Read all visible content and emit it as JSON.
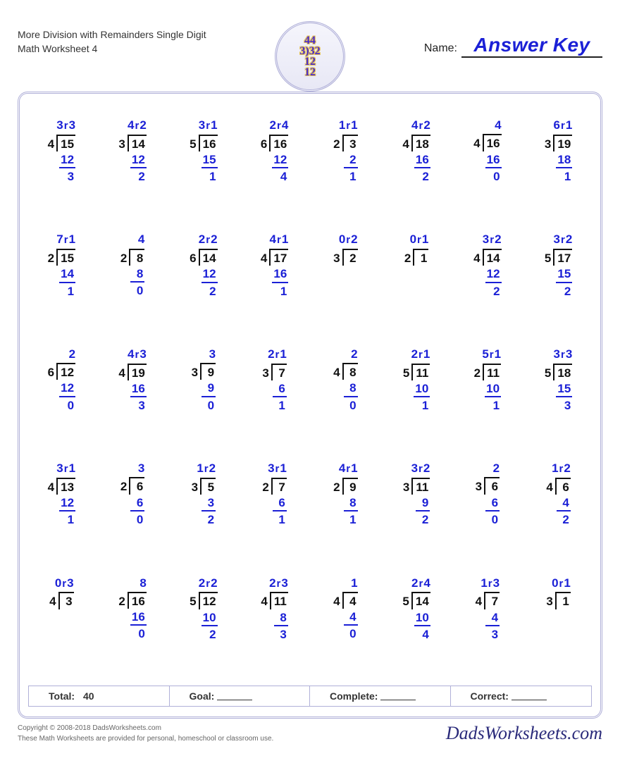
{
  "header": {
    "title": "More Division with Remainders Single Digit Math Worksheet 4",
    "name_label": "Name:",
    "answer_key": "Answer Key",
    "logo_lines": [
      "44",
      "3)32",
      "12",
      "12"
    ]
  },
  "colors": {
    "answer": "#1b20d6",
    "ink": "#111111",
    "frame": "#b0b0d8"
  },
  "score": {
    "total_label": "Total:",
    "total_value": "40",
    "goal_label": "Goal:",
    "complete_label": "Complete:",
    "correct_label": "Correct:"
  },
  "footer": {
    "copyright": "Copyright © 2008-2018 DadsWorksheets.com",
    "note": "These Math Worksheets are provided for personal, homeschool or classroom use.",
    "site": "DadsWorksheets.com"
  },
  "problems": [
    {
      "divisor": 4,
      "dividend": 15,
      "quotient": 3,
      "remainder": 3,
      "sub": 12,
      "rem": 3
    },
    {
      "divisor": 3,
      "dividend": 14,
      "quotient": 4,
      "remainder": 2,
      "sub": 12,
      "rem": 2
    },
    {
      "divisor": 5,
      "dividend": 16,
      "quotient": 3,
      "remainder": 1,
      "sub": 15,
      "rem": 1
    },
    {
      "divisor": 6,
      "dividend": 16,
      "quotient": 2,
      "remainder": 4,
      "sub": 12,
      "rem": 4
    },
    {
      "divisor": 2,
      "dividend": 3,
      "quotient": 1,
      "remainder": 1,
      "sub": 2,
      "rem": 1
    },
    {
      "divisor": 4,
      "dividend": 18,
      "quotient": 4,
      "remainder": 2,
      "sub": 16,
      "rem": 2
    },
    {
      "divisor": 4,
      "dividend": 16,
      "quotient": 4,
      "remainder": null,
      "sub": 16,
      "rem": 0
    },
    {
      "divisor": 3,
      "dividend": 19,
      "quotient": 6,
      "remainder": 1,
      "sub": 18,
      "rem": 1
    },
    {
      "divisor": 2,
      "dividend": 15,
      "quotient": 7,
      "remainder": 1,
      "sub": 14,
      "rem": 1
    },
    {
      "divisor": 2,
      "dividend": 8,
      "quotient": 4,
      "remainder": null,
      "sub": 8,
      "rem": 0
    },
    {
      "divisor": 6,
      "dividend": 14,
      "quotient": 2,
      "remainder": 2,
      "sub": 12,
      "rem": 2
    },
    {
      "divisor": 4,
      "dividend": 17,
      "quotient": 4,
      "remainder": 1,
      "sub": 16,
      "rem": 1
    },
    {
      "divisor": 3,
      "dividend": 2,
      "quotient": 0,
      "remainder": 2,
      "sub": null,
      "rem": null
    },
    {
      "divisor": 2,
      "dividend": 1,
      "quotient": 0,
      "remainder": 1,
      "sub": null,
      "rem": null
    },
    {
      "divisor": 4,
      "dividend": 14,
      "quotient": 3,
      "remainder": 2,
      "sub": 12,
      "rem": 2
    },
    {
      "divisor": 5,
      "dividend": 17,
      "quotient": 3,
      "remainder": 2,
      "sub": 15,
      "rem": 2
    },
    {
      "divisor": 6,
      "dividend": 12,
      "quotient": 2,
      "remainder": null,
      "sub": 12,
      "rem": 0
    },
    {
      "divisor": 4,
      "dividend": 19,
      "quotient": 4,
      "remainder": 3,
      "sub": 16,
      "rem": 3
    },
    {
      "divisor": 3,
      "dividend": 9,
      "quotient": 3,
      "remainder": null,
      "sub": 9,
      "rem": 0
    },
    {
      "divisor": 3,
      "dividend": 7,
      "quotient": 2,
      "remainder": 1,
      "sub": 6,
      "rem": 1
    },
    {
      "divisor": 4,
      "dividend": 8,
      "quotient": 2,
      "remainder": null,
      "sub": 8,
      "rem": 0
    },
    {
      "divisor": 5,
      "dividend": 11,
      "quotient": 2,
      "remainder": 1,
      "sub": 10,
      "rem": 1
    },
    {
      "divisor": 2,
      "dividend": 11,
      "quotient": 5,
      "remainder": 1,
      "sub": 10,
      "rem": 1
    },
    {
      "divisor": 5,
      "dividend": 18,
      "quotient": 3,
      "remainder": 3,
      "sub": 15,
      "rem": 3
    },
    {
      "divisor": 4,
      "dividend": 13,
      "quotient": 3,
      "remainder": 1,
      "sub": 12,
      "rem": 1
    },
    {
      "divisor": 2,
      "dividend": 6,
      "quotient": 3,
      "remainder": null,
      "sub": 6,
      "rem": 0
    },
    {
      "divisor": 3,
      "dividend": 5,
      "quotient": 1,
      "remainder": 2,
      "sub": 3,
      "rem": 2
    },
    {
      "divisor": 2,
      "dividend": 7,
      "quotient": 3,
      "remainder": 1,
      "sub": 6,
      "rem": 1
    },
    {
      "divisor": 2,
      "dividend": 9,
      "quotient": 4,
      "remainder": 1,
      "sub": 8,
      "rem": 1
    },
    {
      "divisor": 3,
      "dividend": 11,
      "quotient": 3,
      "remainder": 2,
      "sub": 9,
      "rem": 2
    },
    {
      "divisor": 3,
      "dividend": 6,
      "quotient": 2,
      "remainder": null,
      "sub": 6,
      "rem": 0
    },
    {
      "divisor": 4,
      "dividend": 6,
      "quotient": 1,
      "remainder": 2,
      "sub": 4,
      "rem": 2
    },
    {
      "divisor": 4,
      "dividend": 3,
      "quotient": 0,
      "remainder": 3,
      "sub": null,
      "rem": null
    },
    {
      "divisor": 2,
      "dividend": 16,
      "quotient": 8,
      "remainder": null,
      "sub": 16,
      "rem": 0
    },
    {
      "divisor": 5,
      "dividend": 12,
      "quotient": 2,
      "remainder": 2,
      "sub": 10,
      "rem": 2
    },
    {
      "divisor": 4,
      "dividend": 11,
      "quotient": 2,
      "remainder": 3,
      "sub": 8,
      "rem": 3
    },
    {
      "divisor": 4,
      "dividend": 4,
      "quotient": 1,
      "remainder": null,
      "sub": 4,
      "rem": 0
    },
    {
      "divisor": 5,
      "dividend": 14,
      "quotient": 2,
      "remainder": 4,
      "sub": 10,
      "rem": 4
    },
    {
      "divisor": 4,
      "dividend": 7,
      "quotient": 1,
      "remainder": 3,
      "sub": 4,
      "rem": 3
    },
    {
      "divisor": 3,
      "dividend": 1,
      "quotient": 0,
      "remainder": 1,
      "sub": null,
      "rem": null
    }
  ]
}
